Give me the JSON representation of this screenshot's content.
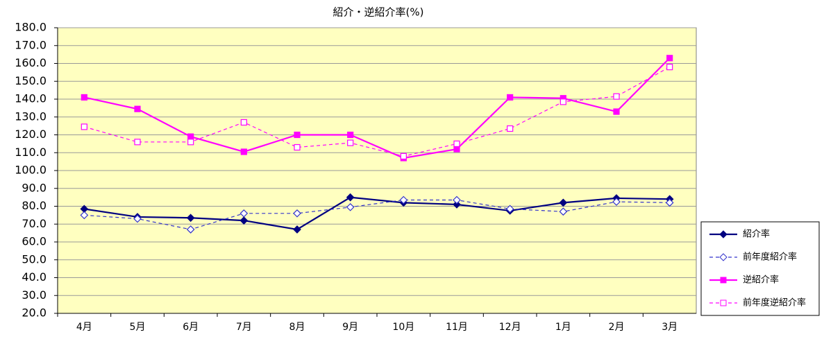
{
  "chart_data": {
    "type": "line",
    "title": "紹介・逆紹介率(%)",
    "categories": [
      "4月",
      "5月",
      "6月",
      "7月",
      "8月",
      "9月",
      "10月",
      "11月",
      "12月",
      "1月",
      "2月",
      "3月"
    ],
    "series": [
      {
        "name": "紹介率",
        "color": "#000080",
        "marker": "diamond",
        "filled": true,
        "dashed": false,
        "values": [
          78.5,
          74,
          73.5,
          72,
          67,
          85,
          82,
          81,
          77.5,
          82,
          84.5,
          84
        ]
      },
      {
        "name": "前年度紹介率",
        "color": "#3333cc",
        "marker": "diamond",
        "filled": false,
        "dashed": true,
        "values": [
          75,
          73,
          67,
          76,
          76,
          79.5,
          83.5,
          83.5,
          78.5,
          77,
          82.5,
          82
        ]
      },
      {
        "name": "逆紹介率",
        "color": "#ff00ff",
        "marker": "square",
        "filled": true,
        "dashed": false,
        "values": [
          141,
          134.5,
          119,
          110.5,
          120,
          120,
          107,
          112,
          141,
          140.5,
          133,
          163
        ]
      },
      {
        "name": "前年度逆紹介率",
        "color": "#ff00ff",
        "marker": "square",
        "filled": false,
        "dashed": true,
        "values": [
          124.5,
          116,
          116,
          127,
          113,
          115.5,
          108,
          115,
          123.5,
          138.5,
          141.5,
          158
        ]
      }
    ],
    "ylim": [
      20,
      180
    ],
    "yticks": [
      {
        "value": 20,
        "label": "20.0"
      },
      {
        "value": 30,
        "label": "30.0"
      },
      {
        "value": 40,
        "label": "40.0"
      },
      {
        "value": 50,
        "label": "50.0"
      },
      {
        "value": 60,
        "label": "60.0"
      },
      {
        "value": 70,
        "label": "70.0"
      },
      {
        "value": 80,
        "label": "80.0"
      },
      {
        "value": 90,
        "label": "90.0"
      },
      {
        "value": 100,
        "label": "100.0"
      },
      {
        "value": 110,
        "label": "110.0"
      },
      {
        "value": 120,
        "label": "120.0"
      },
      {
        "value": 130,
        "label": "130.0"
      },
      {
        "value": 140,
        "label": "140.0"
      },
      {
        "value": 150,
        "label": "150.0"
      },
      {
        "value": 160,
        "label": "160.0"
      },
      {
        "value": 170,
        "label": "170.0"
      },
      {
        "value": 180,
        "label": "180.0"
      }
    ],
    "grid": true,
    "legend": "right",
    "plot_background": "#ffffc0"
  }
}
